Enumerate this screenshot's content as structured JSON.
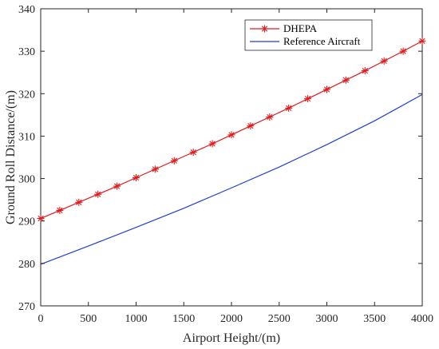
{
  "chart_data": {
    "type": "line",
    "title": "",
    "xlabel": "Airport Height/(m)",
    "ylabel": "Ground Roll Distance/(m)",
    "xlim": [
      0,
      4000
    ],
    "ylim": [
      270,
      340
    ],
    "x_ticks": [
      0,
      500,
      1000,
      1500,
      2000,
      2500,
      3000,
      3500,
      4000
    ],
    "y_ticks": [
      270,
      280,
      290,
      300,
      310,
      320,
      330,
      340
    ],
    "grid": false,
    "legend_position": "top-right",
    "series": [
      {
        "name": "DHEPA",
        "color": "#e31a1c",
        "marker": "asterisk",
        "x": [
          0,
          200,
          400,
          600,
          800,
          1000,
          1200,
          1400,
          1600,
          1800,
          2000,
          2200,
          2400,
          2600,
          2800,
          3000,
          3200,
          3400,
          3600,
          3800,
          4000
        ],
        "y": [
          290.6,
          292.5,
          294.4,
          296.3,
          298.2,
          300.2,
          302.2,
          304.2,
          306.2,
          308.2,
          310.3,
          312.4,
          314.5,
          316.6,
          318.8,
          321.0,
          323.2,
          325.4,
          327.7,
          330.0,
          332.4
        ]
      },
      {
        "name": "Reference Aircraft",
        "color": "#1f3fd6",
        "marker": "none",
        "x": [
          0,
          500,
          1000,
          1500,
          2000,
          2500,
          3000,
          3500,
          4000
        ],
        "y": [
          279.8,
          284.1,
          288.5,
          293.0,
          297.8,
          302.7,
          308.0,
          313.6,
          319.8
        ]
      }
    ]
  }
}
